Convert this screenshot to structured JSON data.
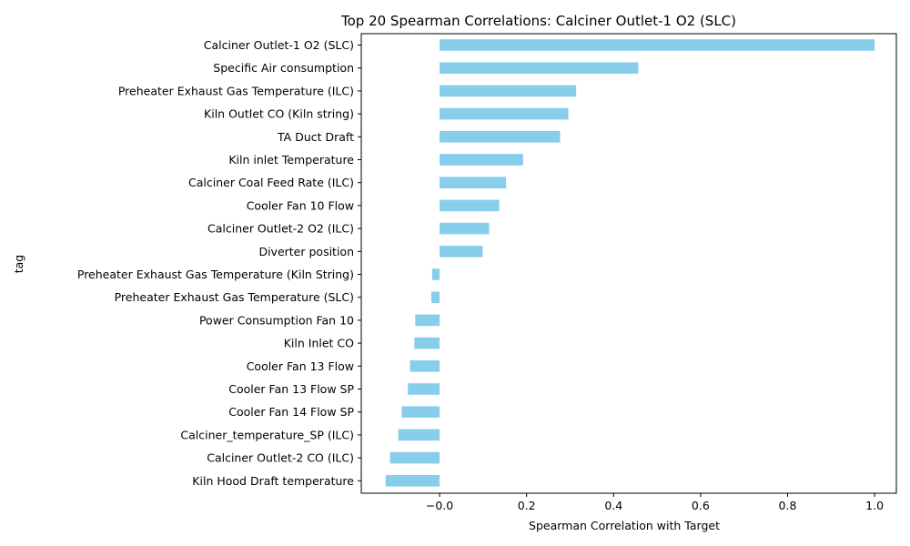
{
  "chart_data": {
    "type": "bar",
    "orientation": "horizontal",
    "title": "Top 20 Spearman Correlations: Calciner Outlet-1 O2 (SLC)",
    "xlabel": "Spearman Correlation with Target",
    "ylabel": "tag",
    "xlim": [
      -0.18,
      1.05
    ],
    "xticks": [
      "−0.0",
      "0.2",
      "0.4",
      "0.6",
      "0.8",
      "1.0"
    ],
    "xtick_values": [
      0.0,
      0.2,
      0.4,
      0.6,
      0.8,
      1.0
    ],
    "bar_color": "#87ceeb",
    "grid": false,
    "legend": "none",
    "categories": [
      "Calciner Outlet-1 O2 (SLC)",
      "Specific Air consumption",
      "Preheater Exhaust Gas Temperature (ILC)",
      "Kiln Outlet CO (Kiln string)",
      "TA Duct Draft",
      "Kiln inlet Temperature",
      "Calciner Coal Feed Rate (ILC)",
      "Cooler Fan 10 Flow",
      "Calciner Outlet-2 O2 (ILC)",
      "Diverter position",
      "Preheater Exhaust Gas Temperature  (Kiln String)",
      "Preheater Exhaust Gas Temperature (SLC)",
      "Power Consumption Fan 10",
      "Kiln Inlet CO",
      "Cooler Fan 13 Flow",
      "Cooler Fan 13 Flow SP",
      "Cooler Fan 14 Flow SP",
      "Calciner_temperature_SP (ILC)",
      "Calciner Outlet-2 CO (ILC)",
      "Kiln Hood Draft temperature"
    ],
    "values": [
      1.0,
      0.457,
      0.314,
      0.296,
      0.277,
      0.192,
      0.153,
      0.137,
      0.114,
      0.099,
      -0.017,
      -0.019,
      -0.056,
      -0.058,
      -0.068,
      -0.073,
      -0.087,
      -0.095,
      -0.114,
      -0.124
    ]
  }
}
